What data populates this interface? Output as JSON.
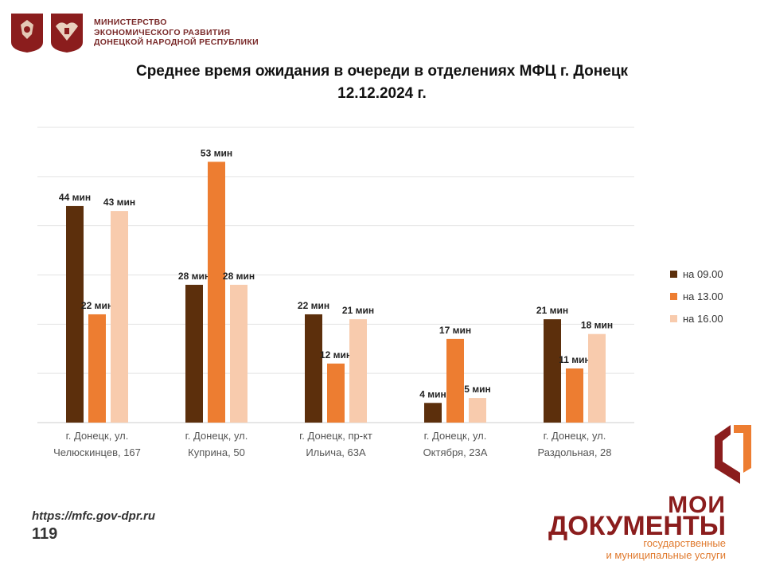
{
  "header": {
    "ministry_lines": [
      "МИНИСТЕРСТВО",
      "ЭКОНОМИЧЕСКОГО РАЗВИТИЯ",
      "ДОНЕЦКОЙ НАРОДНОЙ РЕСПУБЛИКИ"
    ]
  },
  "footer": {
    "url": "https://mfc.gov-dpr.ru",
    "page_number": "119"
  },
  "logo": {
    "line1": "МОИ",
    "line2": "ДОКУМЕНТЫ",
    "sub1": "государственные",
    "sub2": "и муниципальные услуги"
  },
  "chart_data": {
    "type": "bar",
    "title": "Среднее время ожидания в очереди в отделениях МФЦ г. Донецк",
    "subtitle": "12.12.2024 г.",
    "categories": [
      [
        "г. Донецк, ул.",
        "Челюскинцев, 167"
      ],
      [
        "г. Донецк, ул.",
        "Куприна, 50"
      ],
      [
        "г. Донецк, пр-кт",
        "Ильича, 63А"
      ],
      [
        "г. Донецк, ул.",
        "Октября, 23А"
      ],
      [
        "г. Донецк, ул.",
        "Раздольная, 28"
      ]
    ],
    "series": [
      {
        "name": "на 09.00",
        "color": "#5c2f0c",
        "values": [
          44,
          28,
          22,
          4,
          21
        ],
        "labels": [
          "44 мин",
          "28 мин",
          "22 мин",
          "4 мин",
          "21 мин"
        ]
      },
      {
        "name": "на 13.00",
        "color": "#ed7d31",
        "values": [
          22,
          53,
          12,
          17,
          11
        ],
        "labels": [
          "22 мин",
          "53 мин",
          "12 мин",
          "17 мин",
          "11 мин"
        ]
      },
      {
        "name": "на 16.00",
        "color": "#f8cbad",
        "values": [
          43,
          28,
          21,
          5,
          18
        ],
        "labels": [
          "43 мин",
          "28 мин",
          "21 мин",
          "5 мин",
          "18 мин"
        ]
      }
    ],
    "ylim": [
      0,
      60
    ],
    "grid": true,
    "legend": "right"
  }
}
